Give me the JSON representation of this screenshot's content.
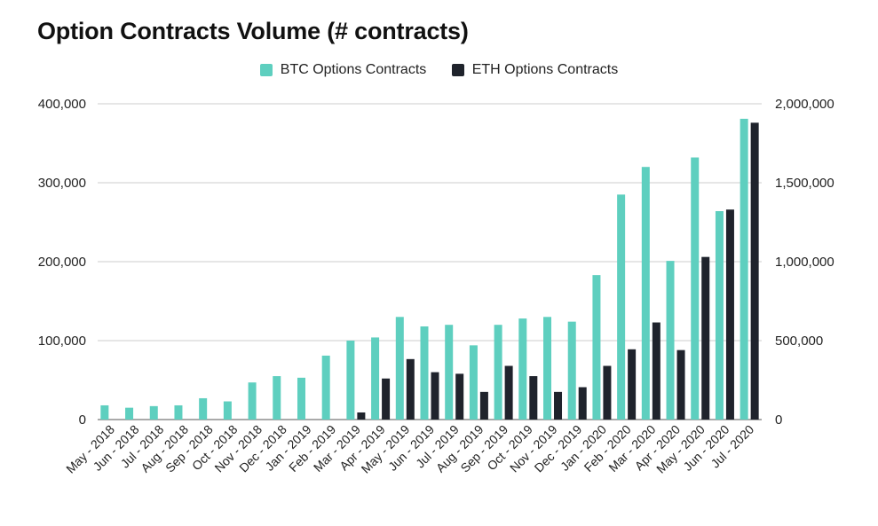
{
  "chart_data": {
    "type": "bar",
    "title": "Option Contracts Volume (# contracts)",
    "legend_position": "top",
    "grid": true,
    "categories": [
      "May - 2018",
      "Jun - 2018",
      "Jul - 2018",
      "Aug - 2018",
      "Sep - 2018",
      "Oct - 2018",
      "Nov - 2018",
      "Dec - 2018",
      "Jan - 2019",
      "Feb - 2019",
      "Mar - 2019",
      "Apr - 2019",
      "May - 2019",
      "Jun - 2019",
      "Jul - 2019",
      "Aug - 2019",
      "Sep - 2019",
      "Oct - 2019",
      "Nov - 2019",
      "Dec - 2019",
      "Jan - 2020",
      "Feb - 2020",
      "Mar - 2020",
      "Apr - 2020",
      "May - 2020",
      "Jun - 2020",
      "Jul - 2020"
    ],
    "series": [
      {
        "name": "BTC Options Contracts",
        "axis": "left",
        "color": "#5ecfbf",
        "values": [
          18000,
          15000,
          17000,
          18000,
          27000,
          23000,
          47000,
          55000,
          53000,
          81000,
          100000,
          104000,
          130000,
          118000,
          120000,
          94000,
          120000,
          128000,
          130000,
          124000,
          183000,
          285000,
          320000,
          201000,
          332000,
          264000,
          381000
        ]
      },
      {
        "name": "ETH Options Contracts",
        "axis": "right",
        "color": "#1f232c",
        "values": [
          0,
          0,
          0,
          0,
          0,
          0,
          0,
          0,
          0,
          0,
          45000,
          260000,
          383000,
          300000,
          290000,
          175000,
          340000,
          275000,
          175000,
          205000,
          340000,
          445000,
          615000,
          440000,
          1030000,
          1330000,
          1880000
        ]
      }
    ],
    "y_left": {
      "lim": [
        0,
        400000
      ],
      "ticks": [
        0,
        100000,
        200000,
        300000,
        400000
      ],
      "tick_labels": [
        "0",
        "100,000",
        "200,000",
        "300,000",
        "400,000"
      ]
    },
    "y_right": {
      "lim": [
        0,
        2000000
      ],
      "ticks": [
        0,
        500000,
        1000000,
        1500000,
        2000000
      ],
      "tick_labels": [
        "0",
        "500,000",
        "1,000,000",
        "1,500,000",
        "2,000,000"
      ]
    }
  }
}
